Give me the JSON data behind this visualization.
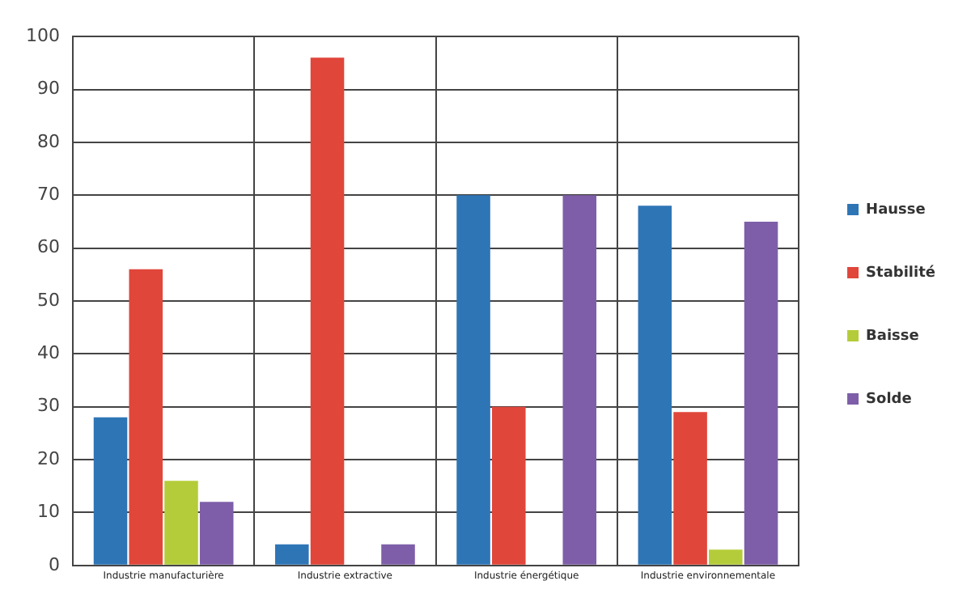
{
  "chart_data": {
    "type": "bar",
    "categories": [
      "Industrie manufacturière",
      "Industrie extractive",
      "Industrie énergétique",
      "Industrie environnementale"
    ],
    "series": [
      {
        "name": "Hausse",
        "color": "#2e75b6",
        "values": [
          28,
          4,
          70,
          68
        ]
      },
      {
        "name": "Stabilité",
        "color": "#e0463a",
        "values": [
          56,
          96,
          30,
          29
        ]
      },
      {
        "name": "Baisse",
        "color": "#b5cc3a",
        "values": [
          16,
          0,
          0,
          3
        ]
      },
      {
        "name": "Solde",
        "color": "#7e5ea8",
        "values": [
          12,
          4,
          70,
          65
        ]
      }
    ],
    "ylim": [
      0,
      100
    ],
    "yticks": [
      0,
      10,
      20,
      30,
      40,
      50,
      60,
      70,
      80,
      90,
      100
    ],
    "grid": true,
    "legend": "right"
  }
}
